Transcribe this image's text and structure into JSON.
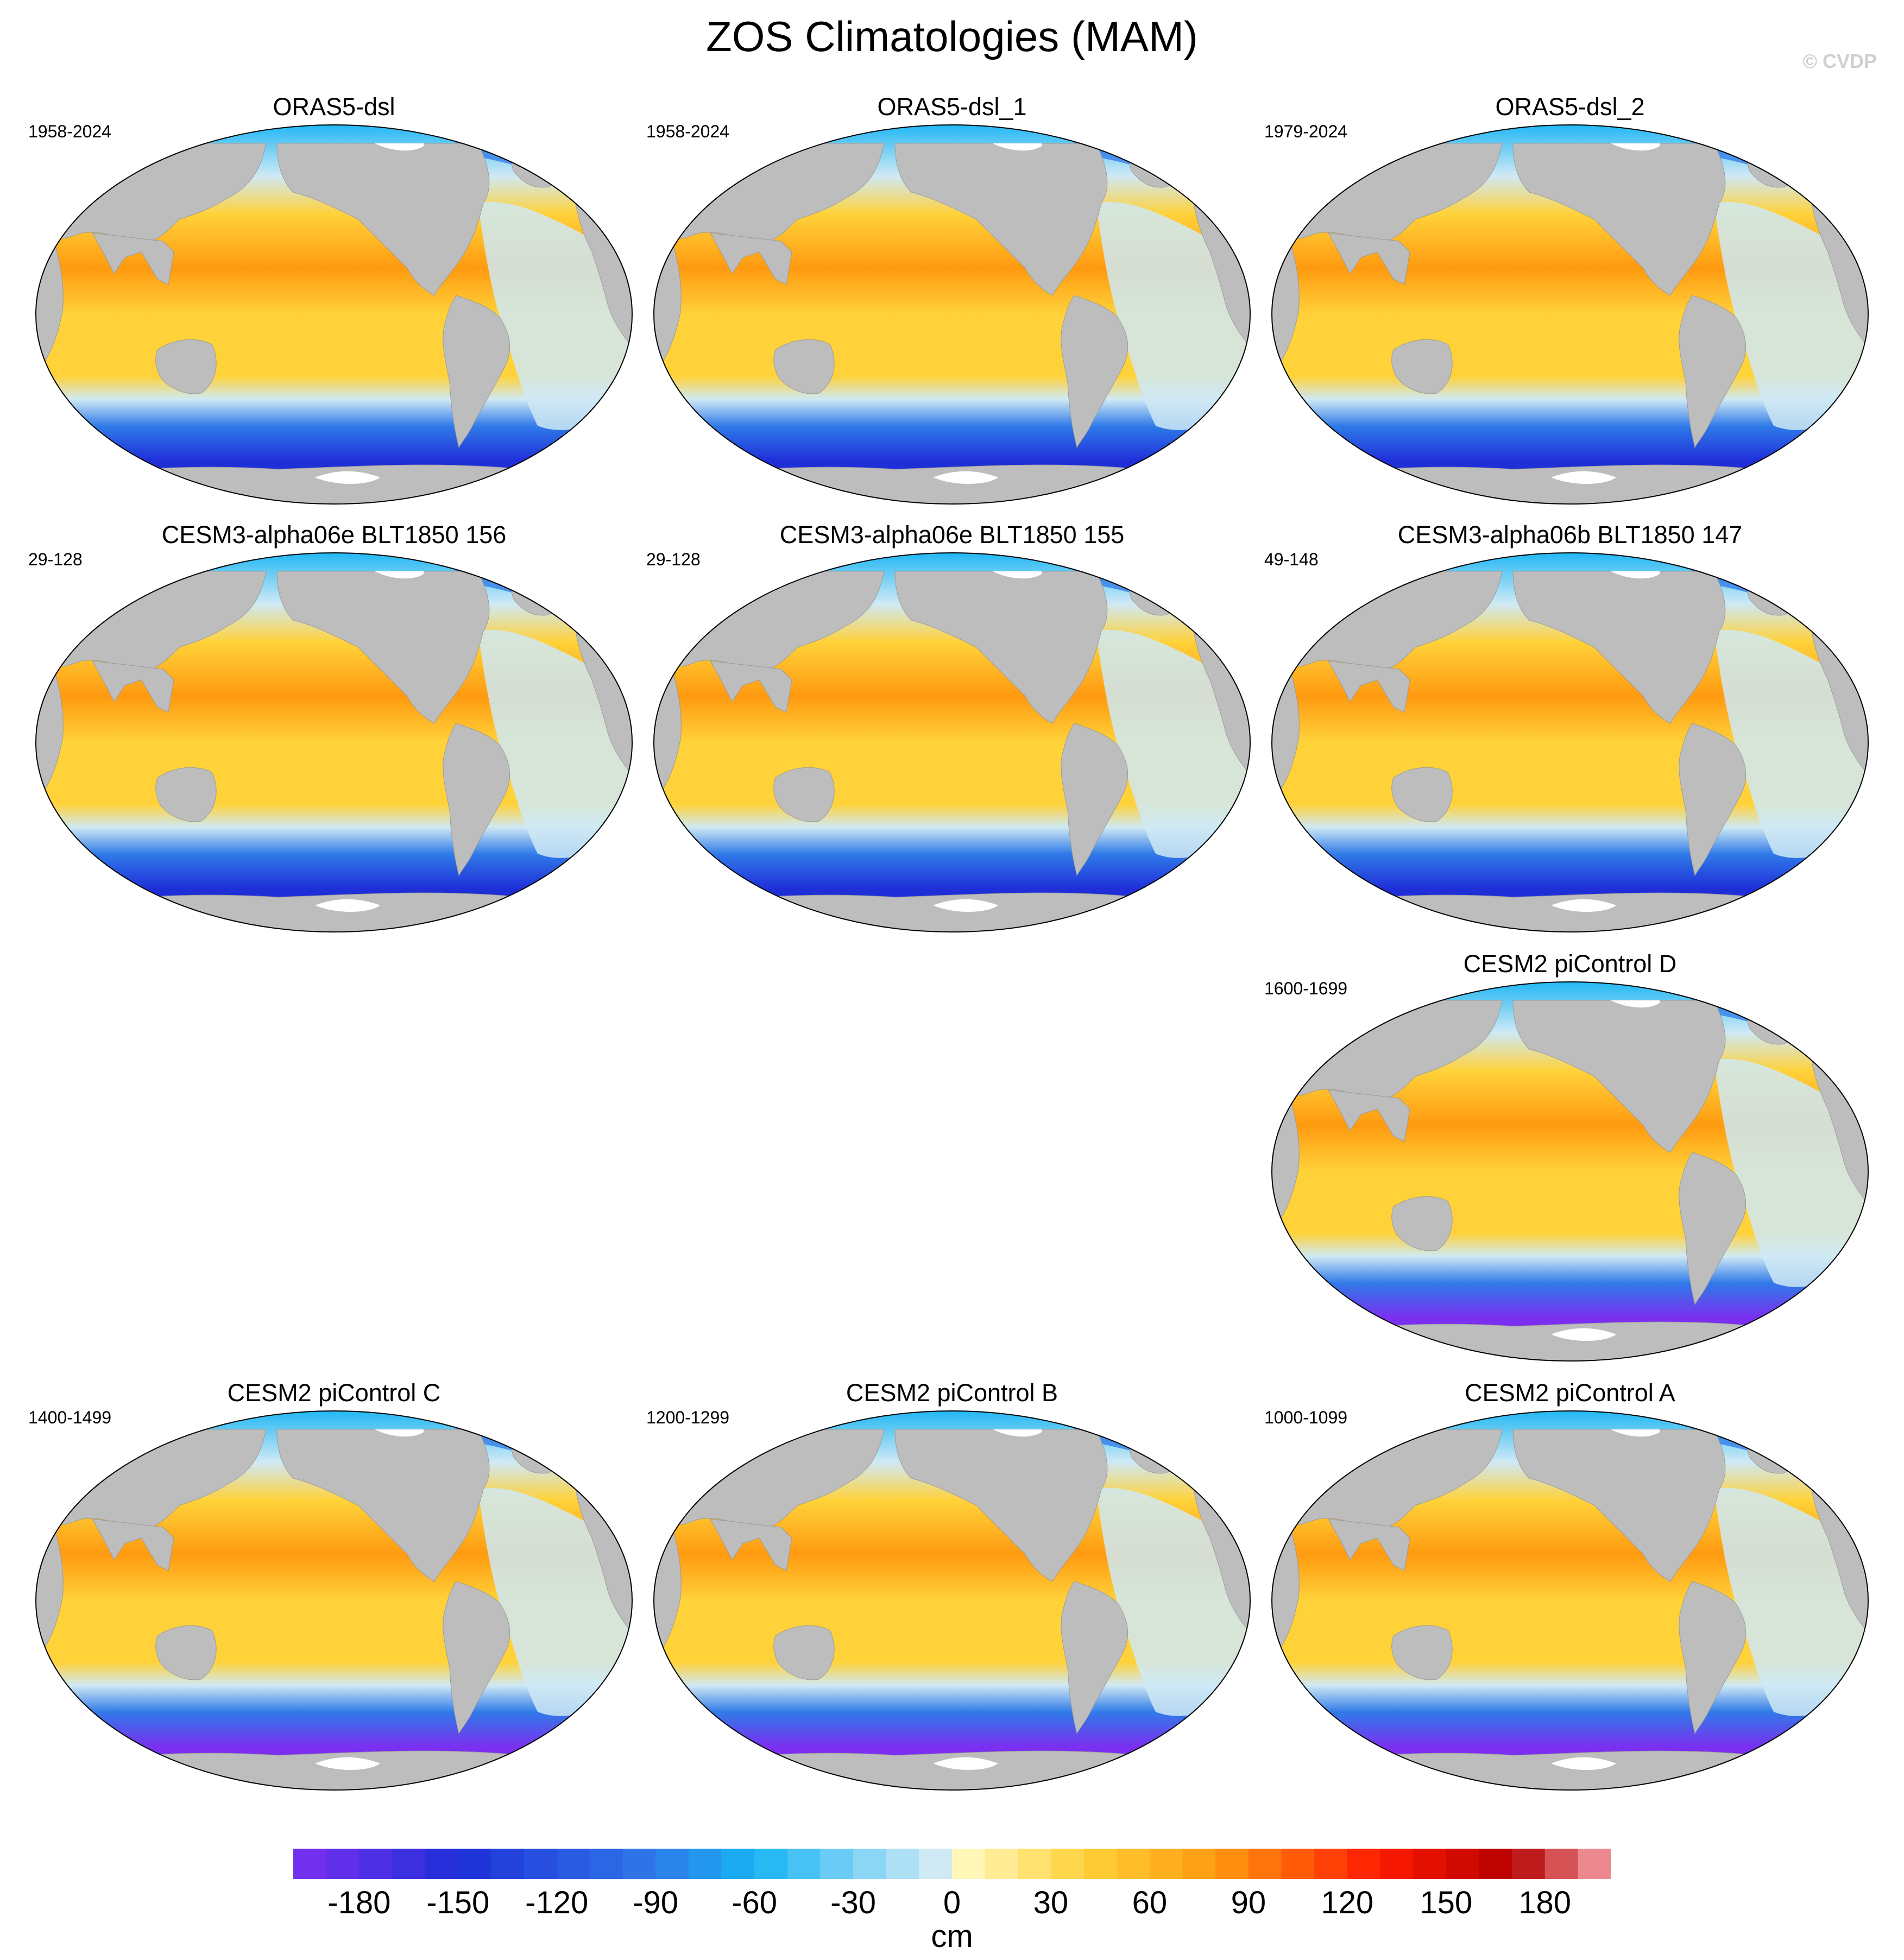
{
  "title": "ZOS Climatologies (MAM)",
  "copyright": "© CVDP",
  "panels": [
    {
      "id": "p1",
      "title": "ORAS5-dsl",
      "years": "1958-2024"
    },
    {
      "id": "p2",
      "title": "ORAS5-dsl_1",
      "years": "1958-2024"
    },
    {
      "id": "p3",
      "title": "ORAS5-dsl_2",
      "years": "1979-2024"
    },
    {
      "id": "p4",
      "title": "CESM3-alpha06e BLT1850 156",
      "years": "29-128"
    },
    {
      "id": "p5",
      "title": "CESM3-alpha06e BLT1850 155",
      "years": "29-128"
    },
    {
      "id": "p6",
      "title": "CESM3-alpha06b BLT1850 147",
      "years": "49-148"
    },
    {
      "id": "p7",
      "title": "CESM2 piControl D",
      "years": "1600-1699"
    },
    {
      "id": "p8",
      "title": "CESM2 piControl C",
      "years": "1400-1499"
    },
    {
      "id": "p9",
      "title": "CESM2 piControl B",
      "years": "1200-1299"
    },
    {
      "id": "p10",
      "title": "CESM2 piControl A",
      "years": "1000-1099"
    }
  ],
  "colorbar": {
    "units": "cm",
    "min": -200,
    "max": 200,
    "step": 10,
    "tick_labels": [
      "-180",
      "-150",
      "-120",
      "-90",
      "-60",
      "-30",
      "0",
      "30",
      "60",
      "90",
      "120",
      "150",
      "180"
    ],
    "colors": {
      "deep_purple": "#7b2ff0",
      "deep_blue": "#1f2fd8",
      "blue": "#2f7ae8",
      "light_blue": "#16b4f4",
      "pale_blue": "#cfe9f5",
      "pale_yellow": "#fff6b8",
      "yellow": "#ffd23a",
      "orange": "#ff9a10",
      "red": "#ff1a00",
      "dark_red": "#b30000",
      "pink": "#f6a4aa"
    }
  },
  "map_colors": {
    "land": "#bdbdbd",
    "ice": "#ffffff"
  }
}
